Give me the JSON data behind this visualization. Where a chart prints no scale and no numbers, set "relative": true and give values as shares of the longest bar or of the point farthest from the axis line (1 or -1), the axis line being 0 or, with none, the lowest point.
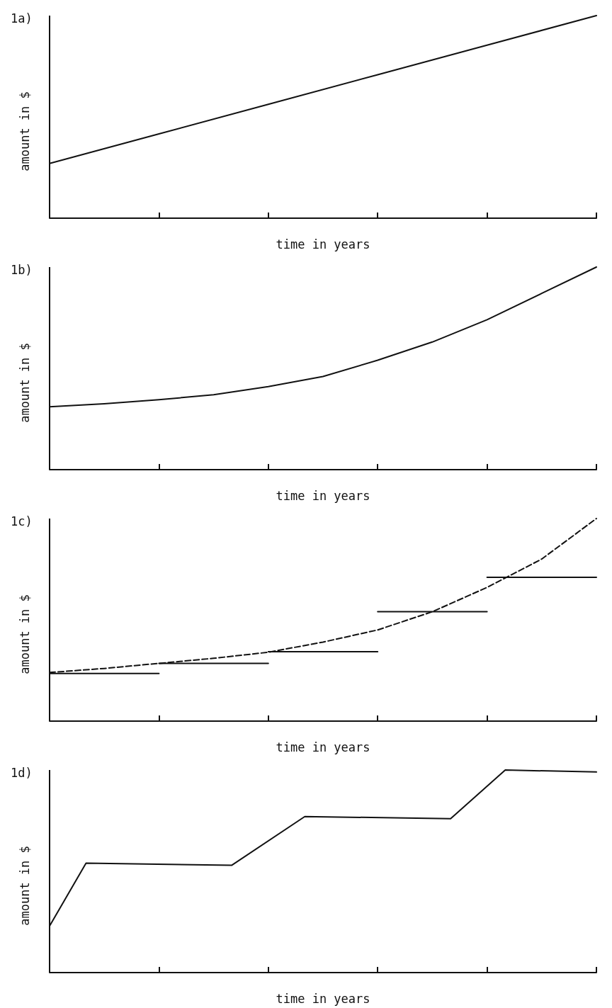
{
  "chart_data": [
    {
      "type": "line",
      "title": "1a)",
      "xlabel": "time in years",
      "ylabel": "amount in $",
      "relative": true,
      "categories": [
        null,
        null,
        null,
        null,
        null,
        null
      ],
      "series": [
        {
          "color": "#111111",
          "values": [
            0.27,
            0.416,
            0.562,
            0.708,
            0.854,
            1.0
          ]
        }
      ],
      "marker": "none",
      "line_style": "solid",
      "grid": false
    },
    {
      "type": "line",
      "title": "1b)",
      "xlabel": "time in years",
      "ylabel": "amount in $",
      "relative": true,
      "categories": [
        null,
        null,
        null,
        null,
        null,
        null,
        null,
        null,
        null,
        null,
        null
      ],
      "series": [
        {
          "color": "#111111",
          "values": [
            0.31,
            0.325,
            0.345,
            0.37,
            0.41,
            0.46,
            0.54,
            0.63,
            0.74,
            0.87,
            1.0
          ]
        }
      ],
      "marker": "none",
      "line_style": "solid",
      "grid": false
    },
    {
      "type": "line",
      "title": "1c)",
      "xlabel": "time in years",
      "ylabel": "amount in $",
      "relative": true,
      "categories": [
        null,
        null,
        null,
        null,
        null,
        null,
        null,
        null,
        null,
        null,
        null
      ],
      "series": [
        {
          "color": "#111111",
          "values": [
            0.235,
            null,
            0.235,
            null,
            null,
            null,
            null,
            null,
            null,
            null,
            null
          ]
        },
        {
          "color": "#111111",
          "values": [
            null,
            null,
            0.285,
            null,
            0.285,
            null,
            null,
            null,
            null,
            null,
            null
          ]
        },
        {
          "color": "#111111",
          "values": [
            null,
            null,
            null,
            null,
            0.343,
            null,
            0.343,
            null,
            null,
            null,
            null
          ]
        },
        {
          "color": "#111111",
          "values": [
            null,
            null,
            null,
            null,
            null,
            null,
            0.54,
            null,
            0.54,
            null,
            null
          ]
        },
        {
          "color": "#111111",
          "values": [
            null,
            null,
            null,
            null,
            null,
            null,
            null,
            null,
            0.71,
            null,
            0.71
          ]
        },
        {
          "color": "#111111",
          "line_style": "dashed",
          "values": [
            0.24,
            0.26,
            0.285,
            0.31,
            0.34,
            0.39,
            0.45,
            0.54,
            0.66,
            0.8,
            1.0
          ]
        }
      ],
      "marker": "none",
      "line_style": "solid",
      "grid": false
    },
    {
      "type": "line",
      "title": "1d)",
      "xlabel": "time in years",
      "ylabel": "amount in $",
      "relative": true,
      "categories": [
        null,
        null,
        null,
        null,
        null,
        null,
        null,
        null,
        null,
        null,
        null,
        null,
        null,
        null,
        null,
        null,
        null,
        null,
        null,
        null,
        null,
        null,
        null,
        null,
        null,
        null,
        null,
        null,
        null,
        null,
        null
      ],
      "series": [
        {
          "color": "#111111",
          "values": [
            0.23,
            null,
            0.54,
            null,
            null,
            null,
            null,
            null,
            null,
            null,
            0.53,
            null,
            null,
            null,
            0.77,
            null,
            null,
            null,
            null,
            null,
            null,
            null,
            0.76,
            null,
            null,
            1.0,
            null,
            null,
            null,
            null,
            0.99
          ]
        }
      ],
      "marker": "none",
      "line_style": "solid",
      "grid": false
    }
  ]
}
